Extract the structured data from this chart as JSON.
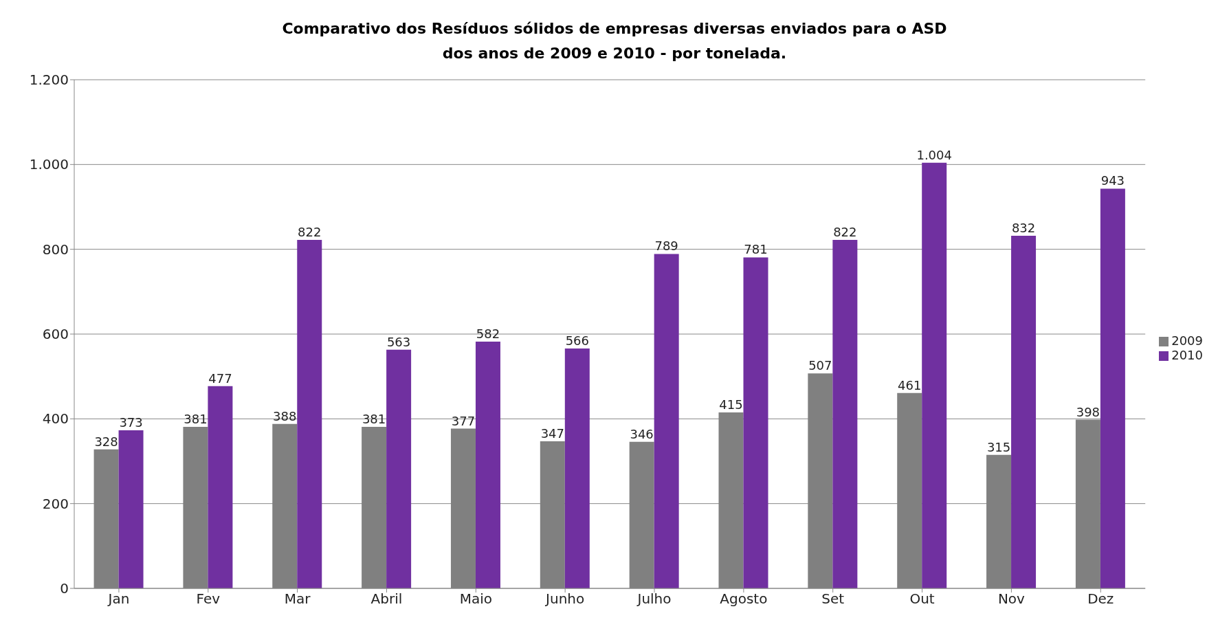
{
  "chart_data": {
    "type": "bar",
    "title": "Comparativo dos Resíduos sólidos de empresas diversas enviados para o ASD\ndos anos de 2009 e 2010 - por tonelada.",
    "categories": [
      "Jan",
      "Fev",
      "Mar",
      "Abril",
      "Maio",
      "Junho",
      "Julho",
      "Agosto",
      "Set",
      "Out",
      "Nov",
      "Dez"
    ],
    "series": [
      {
        "name": "2009",
        "color": "#808080",
        "values": [
          328,
          381,
          388,
          381,
          377,
          347,
          346,
          415,
          507,
          461,
          315,
          398
        ],
        "value_labels": [
          "328",
          "381",
          "388",
          "381",
          "377",
          "347",
          "346",
          "415",
          "507",
          "461",
          "315",
          "398"
        ]
      },
      {
        "name": "2010",
        "color": "#7030a0",
        "values": [
          373,
          477,
          822,
          563,
          582,
          566,
          789,
          781,
          822,
          1004,
          832,
          943
        ],
        "value_labels": [
          "373",
          "477",
          "822",
          "563",
          "582",
          "566",
          "789",
          "781",
          "822",
          "1.004",
          "832",
          "943"
        ]
      }
    ],
    "ylim": [
      0,
      1200
    ],
    "yticks": [
      0,
      200,
      400,
      600,
      800,
      {
        "value": 1000,
        "label": "1.000"
      },
      {
        "value": 1200,
        "label": "1.200"
      }
    ],
    "grid": "y",
    "legend": "right"
  }
}
